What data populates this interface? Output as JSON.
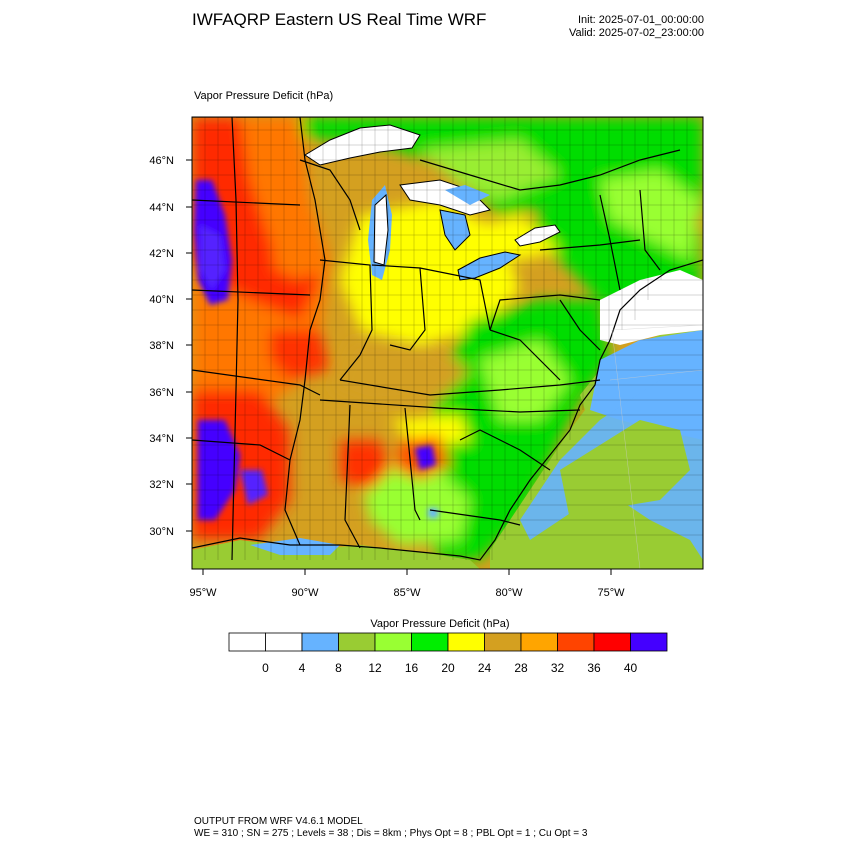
{
  "header": {
    "title": "IWFAQRP Eastern US Real Time WRF",
    "init": "Init: 2025-07-01_00:00:00",
    "valid": "Valid: 2025-07-02_23:00:00"
  },
  "map": {
    "field_label": "Vapor Pressure Deficit   (hPa)",
    "lat_labels": [
      "46°N",
      "44°N",
      "42°N",
      "40°N",
      "38°N",
      "36°N",
      "34°N",
      "32°N",
      "30°N"
    ],
    "lon_labels": [
      "95°W",
      "90°W",
      "85°W",
      "80°W",
      "75°W"
    ],
    "colors": {
      "lake": "#ffffff",
      "ocean_low": "#66b3ff",
      "ocean": "#99cc33",
      "border": "#000000"
    }
  },
  "colorbar": {
    "title": "Vapor Pressure Deficit  (hPa)",
    "tick_labels": [
      "0",
      "4",
      "8",
      "12",
      "16",
      "20",
      "24",
      "28",
      "32",
      "36",
      "40"
    ],
    "colors": [
      "#ffffff",
      "#ffffff",
      "#66b3ff",
      "#99cc33",
      "#99ff33",
      "#00ee00",
      "#ffff00",
      "#d4a020",
      "#ffa500",
      "#ff4400",
      "#ff0000",
      "#4400ff"
    ]
  },
  "footer": {
    "line1": "OUTPUT FROM WRF V4.6.1 MODEL",
    "line2": "WE = 310 ; SN = 275 ; Levels = 38 ; Dis = 8km ; Phys Opt = 8 ; PBL Opt = 1 ; Cu Opt = 3"
  }
}
